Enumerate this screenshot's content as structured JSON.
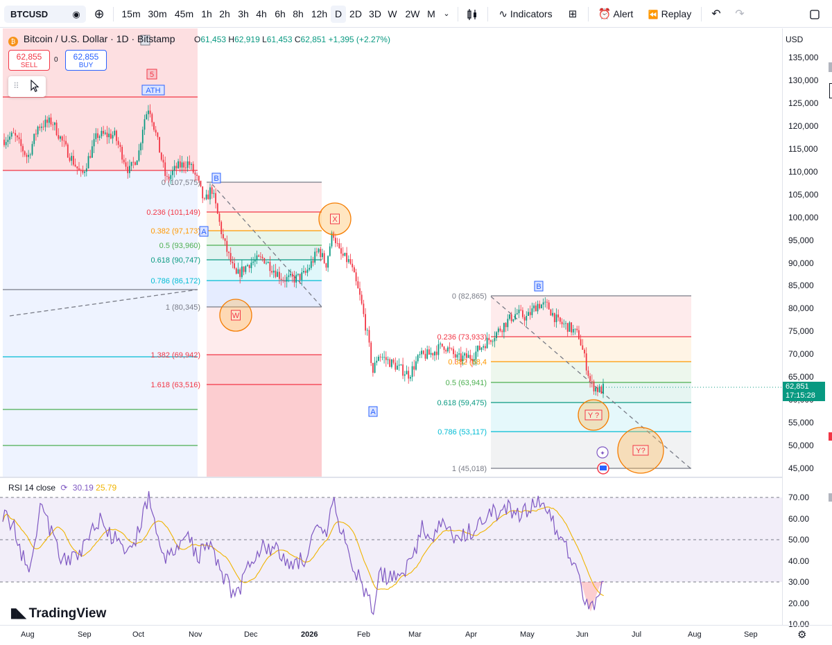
{
  "toolbar": {
    "symbol": "BTCUSD",
    "intervals": [
      "15m",
      "30m",
      "45m",
      "1h",
      "2h",
      "3h",
      "4h",
      "6h",
      "8h",
      "12h",
      "D",
      "2D",
      "3D",
      "W",
      "2W",
      "M"
    ],
    "active_interval": "D",
    "indicators_label": "Indicators",
    "alert_label": "Alert",
    "replay_label": "Replay"
  },
  "legend": {
    "title": "Bitcoin / U.S. Dollar · 1D · Bitstamp",
    "o_label": "O",
    "o": "61,453",
    "h_label": "H",
    "h": "62,919",
    "l_label": "L",
    "l": "61,453",
    "c_label": "C",
    "c": "62,851",
    "change": "+1,395 (+2.27%)"
  },
  "trade": {
    "sell_price": "62,855",
    "sell_label": "SELL",
    "buy_price": "62,855",
    "buy_label": "BUY",
    "spread": "0"
  },
  "price_axis": {
    "currency": "USD",
    "ticks": [
      "135,000",
      "130,000",
      "125,000",
      "120,000",
      "115,000",
      "110,000",
      "105,000",
      "100,000",
      "95,000",
      "90,000",
      "85,000",
      "80,000",
      "75,000",
      "70,000",
      "65,000",
      "60,000",
      "55,000",
      "50,000",
      "45,000"
    ],
    "last_price": "62,851",
    "countdown": "17:15:28"
  },
  "rsi": {
    "name": "RSI 14 close",
    "value": "30.19",
    "ma_value": "25.79",
    "ticks": [
      "70.00",
      "60.00",
      "50.00",
      "40.00",
      "30.00",
      "20.00",
      "10.00"
    ]
  },
  "time_axis": [
    "Aug",
    "Sep",
    "Oct",
    "Nov",
    "Dec",
    "2026",
    "Feb",
    "Mar",
    "Apr",
    "May",
    "Jun",
    "Jul",
    "Aug",
    "Sep"
  ],
  "fib1": {
    "levels": [
      {
        "label": "0 (107,575)",
        "color": "#787b86"
      },
      {
        "label": "0.236 (101,149)",
        "color": "#f23645"
      },
      {
        "label": "0.382 (97,173)",
        "color": "#ff9800"
      },
      {
        "label": "0.5 (93,960)",
        "color": "#4caf50"
      },
      {
        "label": "0.618 (90,747)",
        "color": "#089981"
      },
      {
        "label": "0.786 (86,172)",
        "color": "#00bcd4"
      },
      {
        "label": "1 (80,345)",
        "color": "#787b86"
      },
      {
        "label": "1.382 (69,942)",
        "color": "#f23645"
      },
      {
        "label": "1.618 (63,516)",
        "color": "#f23645"
      }
    ]
  },
  "fib2": {
    "levels": [
      {
        "label": "0 (82,865)",
        "color": "#787b86"
      },
      {
        "label": "0.236 (73,933)",
        "color": "#f23645"
      },
      {
        "label": "0.382 (68,4",
        "color": "#ff9800"
      },
      {
        "label": "0.5 (63,941)",
        "color": "#4caf50"
      },
      {
        "label": "0.618 (59,475)",
        "color": "#089981"
      },
      {
        "label": "0.786 (53,117)",
        "color": "#00bcd4"
      },
      {
        "label": "1 (45,018)",
        "color": "#787b86"
      }
    ]
  },
  "annotations": {
    "ath": "ATH",
    "wave5": "5",
    "wave_a1": "A",
    "wave_b1": "B",
    "wave_x": "X",
    "wave_w": "W",
    "wave_a2": "A",
    "wave_b2": "B",
    "wave_y1": "Y ?",
    "wave_y2": "Y?"
  },
  "brand": "TradingView",
  "colors": {
    "up": "#089981",
    "down": "#f23645",
    "rsi": "#7e57c2",
    "rsi_ma": "#f0b400"
  }
}
